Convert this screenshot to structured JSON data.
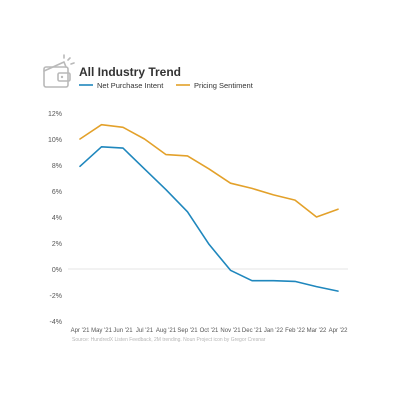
{
  "icon": "wallet-icon",
  "colors": {
    "series_blue": "#1f87bd",
    "series_gold": "#e3a12a",
    "text_dark": "#333333",
    "tick_text": "#555555",
    "zero_line": "#dddddd",
    "source_text": "#b5b5b5",
    "icon_stroke": "#b9b9b9"
  },
  "chart_data": {
    "type": "line",
    "title": "All Industry Trend",
    "xlabel": "",
    "ylabel": "",
    "categories": [
      "Apr '21",
      "May '21",
      "Jun '21",
      "Jul '21",
      "Aug '21",
      "Sep '21",
      "Oct '21",
      "Nov '21",
      "Dec '21",
      "Jan '22",
      "Feb '22",
      "Mar '22",
      "Apr '22"
    ],
    "y_ticks": [
      "12%",
      "10%",
      "8%",
      "6%",
      "4%",
      "2%",
      "0%",
      "-2%",
      "-4%"
    ],
    "ylim": [
      -4,
      12
    ],
    "grid": false,
    "legend": "top-left",
    "series": [
      {
        "name": "Net Purchase Intent",
        "color": "#1f87bd",
        "values": [
          7.9,
          9.4,
          9.3,
          7.7,
          6.1,
          4.4,
          1.9,
          -0.1,
          -0.9,
          -0.9,
          -0.95,
          -1.35,
          -1.7
        ]
      },
      {
        "name": "Pricing Sentiment",
        "color": "#e3a12a",
        "values": [
          10.0,
          11.1,
          10.9,
          10.0,
          8.8,
          8.7,
          7.7,
          6.6,
          6.2,
          5.7,
          5.3,
          4.0,
          4.6
        ]
      }
    ],
    "source": "Source: HundredX Listen Feedback, 2M trending. Noun Project icon by Gregor Cresnar"
  }
}
